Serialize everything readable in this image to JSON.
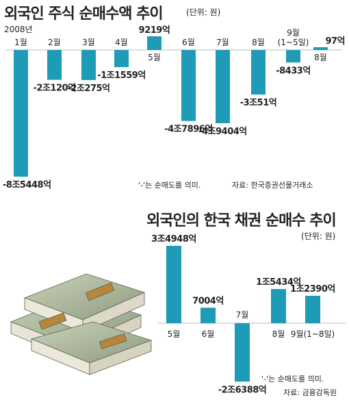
{
  "chart1": {
    "title": "외국인 주식 순매수액 추이",
    "unit": "(단위: 원)",
    "note": "'-'는 순매도를 의미.",
    "source": "자료: 한국증권선물거래소",
    "year_label": "2008년",
    "bar_color": "#1e9bb6"
  },
  "chart2": {
    "title": "외국인의 한국 채권 순매수 추이",
    "unit": "(단위: 원)",
    "note": "'-'는 순매도를 의미.",
    "source": "자료: 금융감독원",
    "bar_color": "#1e9bb6"
  },
  "chart_data": [
    {
      "type": "bar",
      "title": "외국인 주식 순매수액 추이",
      "unit": "억원",
      "categories": [
        "1월",
        "2월",
        "3월",
        "4월",
        "5월",
        "6월",
        "7월",
        "8월",
        "9월 (1~5일)",
        "8월"
      ],
      "category_lines": [
        [
          "1월"
        ],
        [
          "2월"
        ],
        [
          "3월"
        ],
        [
          "4월"
        ],
        [
          "5월"
        ],
        [
          "6월"
        ],
        [
          "7월"
        ],
        [
          "8월"
        ],
        [
          "9월",
          "(1~5일)"
        ],
        [
          "8월"
        ]
      ],
      "values": [
        -85448,
        -20120,
        -20275,
        -11559,
        9219,
        -47896,
        -49404,
        -30051,
        -8433,
        97
      ],
      "labels": [
        "-8조5448억",
        "-2조120억",
        "-2조275억",
        "-1조1559억",
        "9219억",
        "-4조7896억",
        "-4조9404억",
        "-3조51억",
        "-8433억",
        "97억"
      ]
    },
    {
      "type": "bar",
      "title": "외국인의 한국 채권 순매수 추이",
      "unit": "억원",
      "categories": [
        "5월",
        "6월",
        "7월",
        "8월",
        "9월(1~8일)"
      ],
      "values": [
        34948,
        7004,
        -26388,
        15434,
        12390
      ],
      "labels": [
        "3조4948억",
        "7004억",
        "-2조6388억",
        "1조5434억",
        "1조2390억"
      ]
    }
  ]
}
